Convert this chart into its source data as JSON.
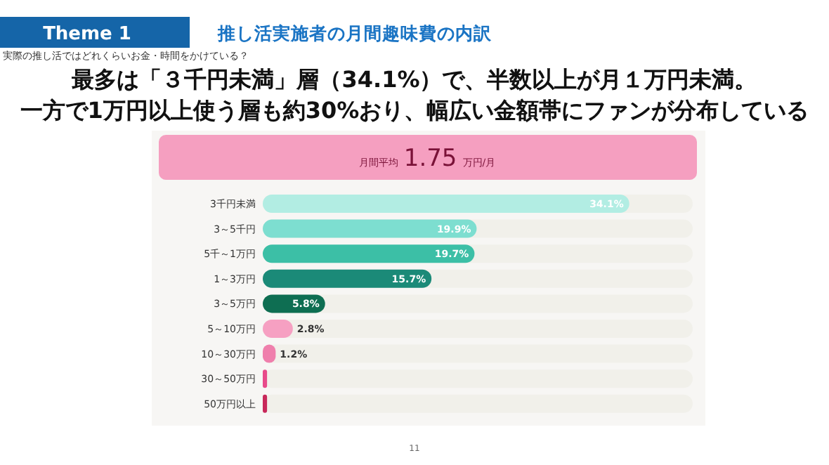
{
  "chart_data": {
    "type": "bar",
    "orientation": "horizontal",
    "title": "推し活実施者の月間趣味費の内訳",
    "subtitle": "実際の推し活ではどれくらいお金・時間をかけている？",
    "annotations": [
      "Theme 1",
      "最多は「３千円未満」層（34.1%）で、半数以上が月１万円未満。",
      "一方で1万円以上使う層も約30%おり、幅広い金額帯にファンが分布している",
      "月間平均 1.75 万円/月",
      "11"
    ],
    "categories": [
      "3千円未満",
      "3～5千円",
      "5千～1万円",
      "1～3万円",
      "3～5万円",
      "5～10万円",
      "10～30万円",
      "30～50万円",
      "50万円以上"
    ],
    "values": [
      34.1,
      19.9,
      19.7,
      15.7,
      5.8,
      2.8,
      1.2,
      0.4,
      0.4
    ],
    "colors": [
      "#b2ede3",
      "#7dded0",
      "#3cbfa6",
      "#1b8a78",
      "#0e6e52",
      "#f6a0c2",
      "#ef7fac",
      "#e84a8a",
      "#c8285a"
    ],
    "value_labels": [
      "34.1%",
      "19.9%",
      "19.7%",
      "15.7%",
      "5.8%",
      "2.8%",
      "1.2%",
      null,
      null
    ],
    "xlim": [
      0,
      40
    ],
    "tick_labels": "y"
  }
}
